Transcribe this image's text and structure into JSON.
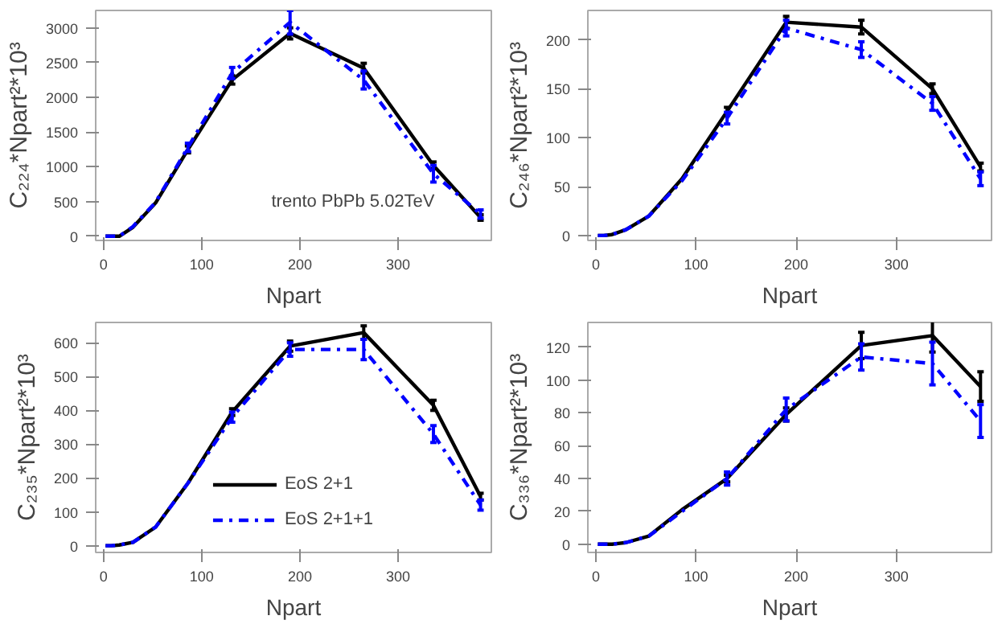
{
  "chart_data": [
    {
      "type": "line",
      "xlabel": "Npart",
      "ylabel": "C₂₂₄*Npart²*10³",
      "x": [
        2,
        8,
        16,
        30,
        53,
        86,
        131,
        190,
        265,
        336,
        384
      ],
      "xlim": [
        -8,
        395
      ],
      "ylim": [
        -60,
        3250
      ],
      "xticks": [
        0,
        100,
        200,
        300
      ],
      "yticks": [
        0,
        500,
        1000,
        1500,
        2000,
        2500,
        3000
      ],
      "grid": false,
      "legend": false,
      "annotations": [
        "trento PbPb 5.02TeV"
      ],
      "series": [
        {
          "color": "#000000",
          "line_style": "solid",
          "values": [
            0,
            0,
            0,
            130,
            480,
            1250,
            2250,
            2920,
            2420,
            1020,
            270
          ],
          "errors": [
            null,
            null,
            null,
            null,
            null,
            50,
            60,
            80,
            70,
            50,
            40
          ]
        },
        {
          "color": "#0000ff",
          "line_style": "dashdot",
          "values": [
            0,
            0,
            0,
            140,
            490,
            1280,
            2350,
            3080,
            2250,
            900,
            320
          ],
          "errors": [
            null,
            null,
            null,
            null,
            null,
            60,
            80,
            170,
            130,
            120,
            60
          ]
        }
      ]
    },
    {
      "type": "line",
      "xlabel": "Npart",
      "ylabel": "C₂₄₆*Npart²*10³",
      "x": [
        2,
        8,
        16,
        30,
        53,
        86,
        131,
        190,
        265,
        336,
        384
      ],
      "xlim": [
        -8,
        395
      ],
      "ylim": [
        -5,
        230
      ],
      "xticks": [
        0,
        100,
        200,
        300
      ],
      "yticks": [
        0,
        50,
        100,
        150,
        200
      ],
      "grid": false,
      "legend": false,
      "series": [
        {
          "color": "#000000",
          "line_style": "solid",
          "values": [
            0,
            0,
            1,
            6,
            20,
            58,
            127,
            218,
            213,
            150,
            70
          ],
          "errors": [
            null,
            null,
            null,
            null,
            null,
            null,
            4,
            6,
            7,
            5,
            4
          ]
        },
        {
          "color": "#0000ff",
          "line_style": "dashdot",
          "values": [
            0,
            0,
            1,
            6,
            20,
            56,
            120,
            212,
            190,
            135,
            58
          ],
          "errors": [
            null,
            null,
            null,
            null,
            null,
            null,
            6,
            8,
            8,
            7,
            7
          ]
        }
      ]
    },
    {
      "type": "line",
      "xlabel": "Npart",
      "ylabel": "C₂₃₅*Npart²*10³",
      "x": [
        2,
        8,
        16,
        30,
        53,
        86,
        131,
        190,
        265,
        336,
        384
      ],
      "xlim": [
        -8,
        395
      ],
      "ylim": [
        -20,
        660
      ],
      "xticks": [
        0,
        100,
        200,
        300
      ],
      "yticks": [
        0,
        100,
        200,
        300,
        400,
        500,
        600
      ],
      "grid": false,
      "legend": "bottom",
      "series": [
        {
          "name": "EoS 2+1",
          "color": "#000000",
          "line_style": "solid",
          "values": [
            0,
            0,
            2,
            10,
            55,
            185,
            395,
            590,
            630,
            415,
            145
          ],
          "errors": [
            null,
            null,
            null,
            null,
            null,
            null,
            10,
            15,
            20,
            15,
            10
          ]
        },
        {
          "name": "EoS 2+1+1",
          "color": "#0000ff",
          "line_style": "dashdot",
          "values": [
            0,
            0,
            2,
            10,
            55,
            185,
            380,
            580,
            580,
            330,
            120
          ],
          "errors": [
            null,
            null,
            null,
            null,
            null,
            null,
            15,
            20,
            30,
            25,
            15
          ]
        }
      ]
    },
    {
      "type": "line",
      "xlabel": "Npart",
      "ylabel": "C₃₃₆*Npart²*10³",
      "x": [
        2,
        8,
        16,
        30,
        53,
        86,
        131,
        190,
        265,
        336,
        384
      ],
      "xlim": [
        -8,
        395
      ],
      "ylim": [
        -5,
        135
      ],
      "xticks": [
        0,
        100,
        200,
        300
      ],
      "yticks": [
        0,
        20,
        40,
        60,
        80,
        100,
        120
      ],
      "grid": false,
      "legend": false,
      "series": [
        {
          "color": "#000000",
          "line_style": "solid",
          "values": [
            0,
            0,
            0,
            1,
            5,
            21,
            40,
            79,
            121,
            127,
            96
          ],
          "errors": [
            null,
            null,
            null,
            null,
            null,
            null,
            2,
            4,
            8,
            10,
            9
          ]
        },
        {
          "color": "#0000ff",
          "line_style": "dashdot",
          "values": [
            0,
            0,
            0,
            1,
            5,
            20,
            40,
            82,
            114,
            110,
            75
          ],
          "errors": [
            null,
            null,
            null,
            null,
            null,
            null,
            4,
            7,
            8,
            13,
            10
          ]
        }
      ]
    }
  ]
}
